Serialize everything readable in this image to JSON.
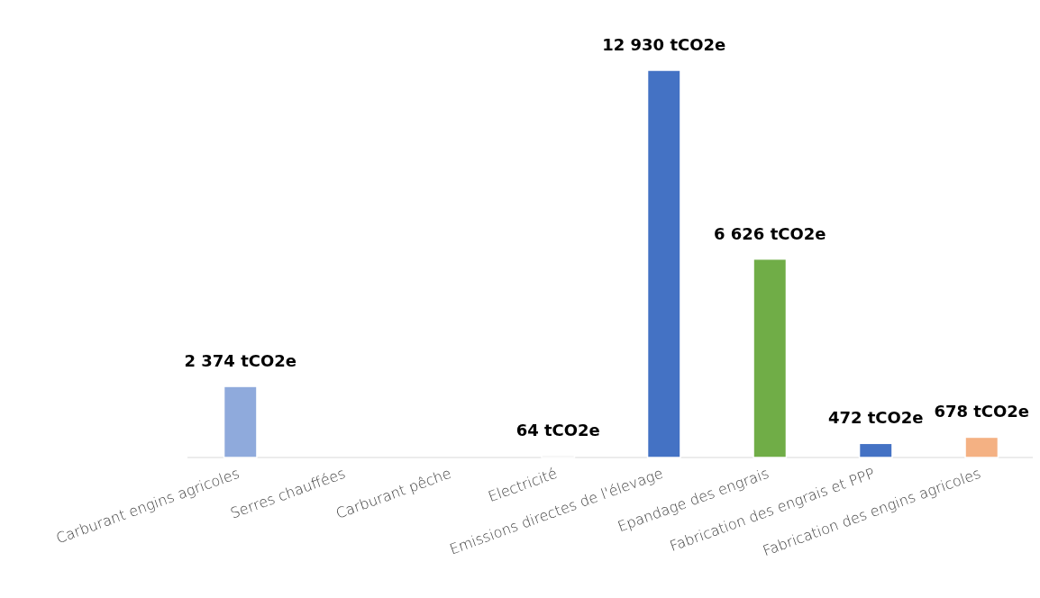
{
  "chart_data": {
    "type": "bar",
    "categories": [
      "Carburant engins agricoles",
      "Serres chauffées",
      "Carburant pêche",
      "Electricité",
      "Emissions directes de l'élevage",
      "Epandage des engrais",
      "Fabrication des engrais et PPP",
      "Fabrication des engins agricoles"
    ],
    "values": [
      2374,
      null,
      null,
      64,
      12930,
      6626,
      472,
      678
    ],
    "colors": [
      "#8faadc",
      null,
      null,
      "#e7e6e6",
      "#4472c4",
      "#70ad47",
      "#4472c4",
      "#f4b183"
    ],
    "value_labels": [
      "2 374 tCO2e",
      null,
      null,
      "64 tCO2e",
      "12 930 tCO2e",
      "6 626 tCO2e",
      "472 tCO2e",
      "678 tCO2e"
    ]
  }
}
